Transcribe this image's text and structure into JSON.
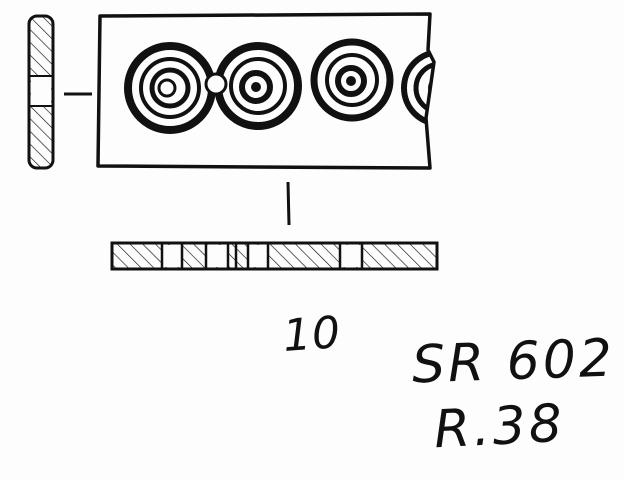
{
  "figure": {
    "number": "10",
    "catalog_code": "SR 602",
    "catalog_ref": "R.38"
  },
  "drawing": {
    "ink_color": "#111111",
    "paper_color": "#fdfdfd",
    "views": [
      "side-section-view",
      "front-view",
      "bottom-section-view"
    ],
    "motif": "concentric-circle-ornament"
  }
}
